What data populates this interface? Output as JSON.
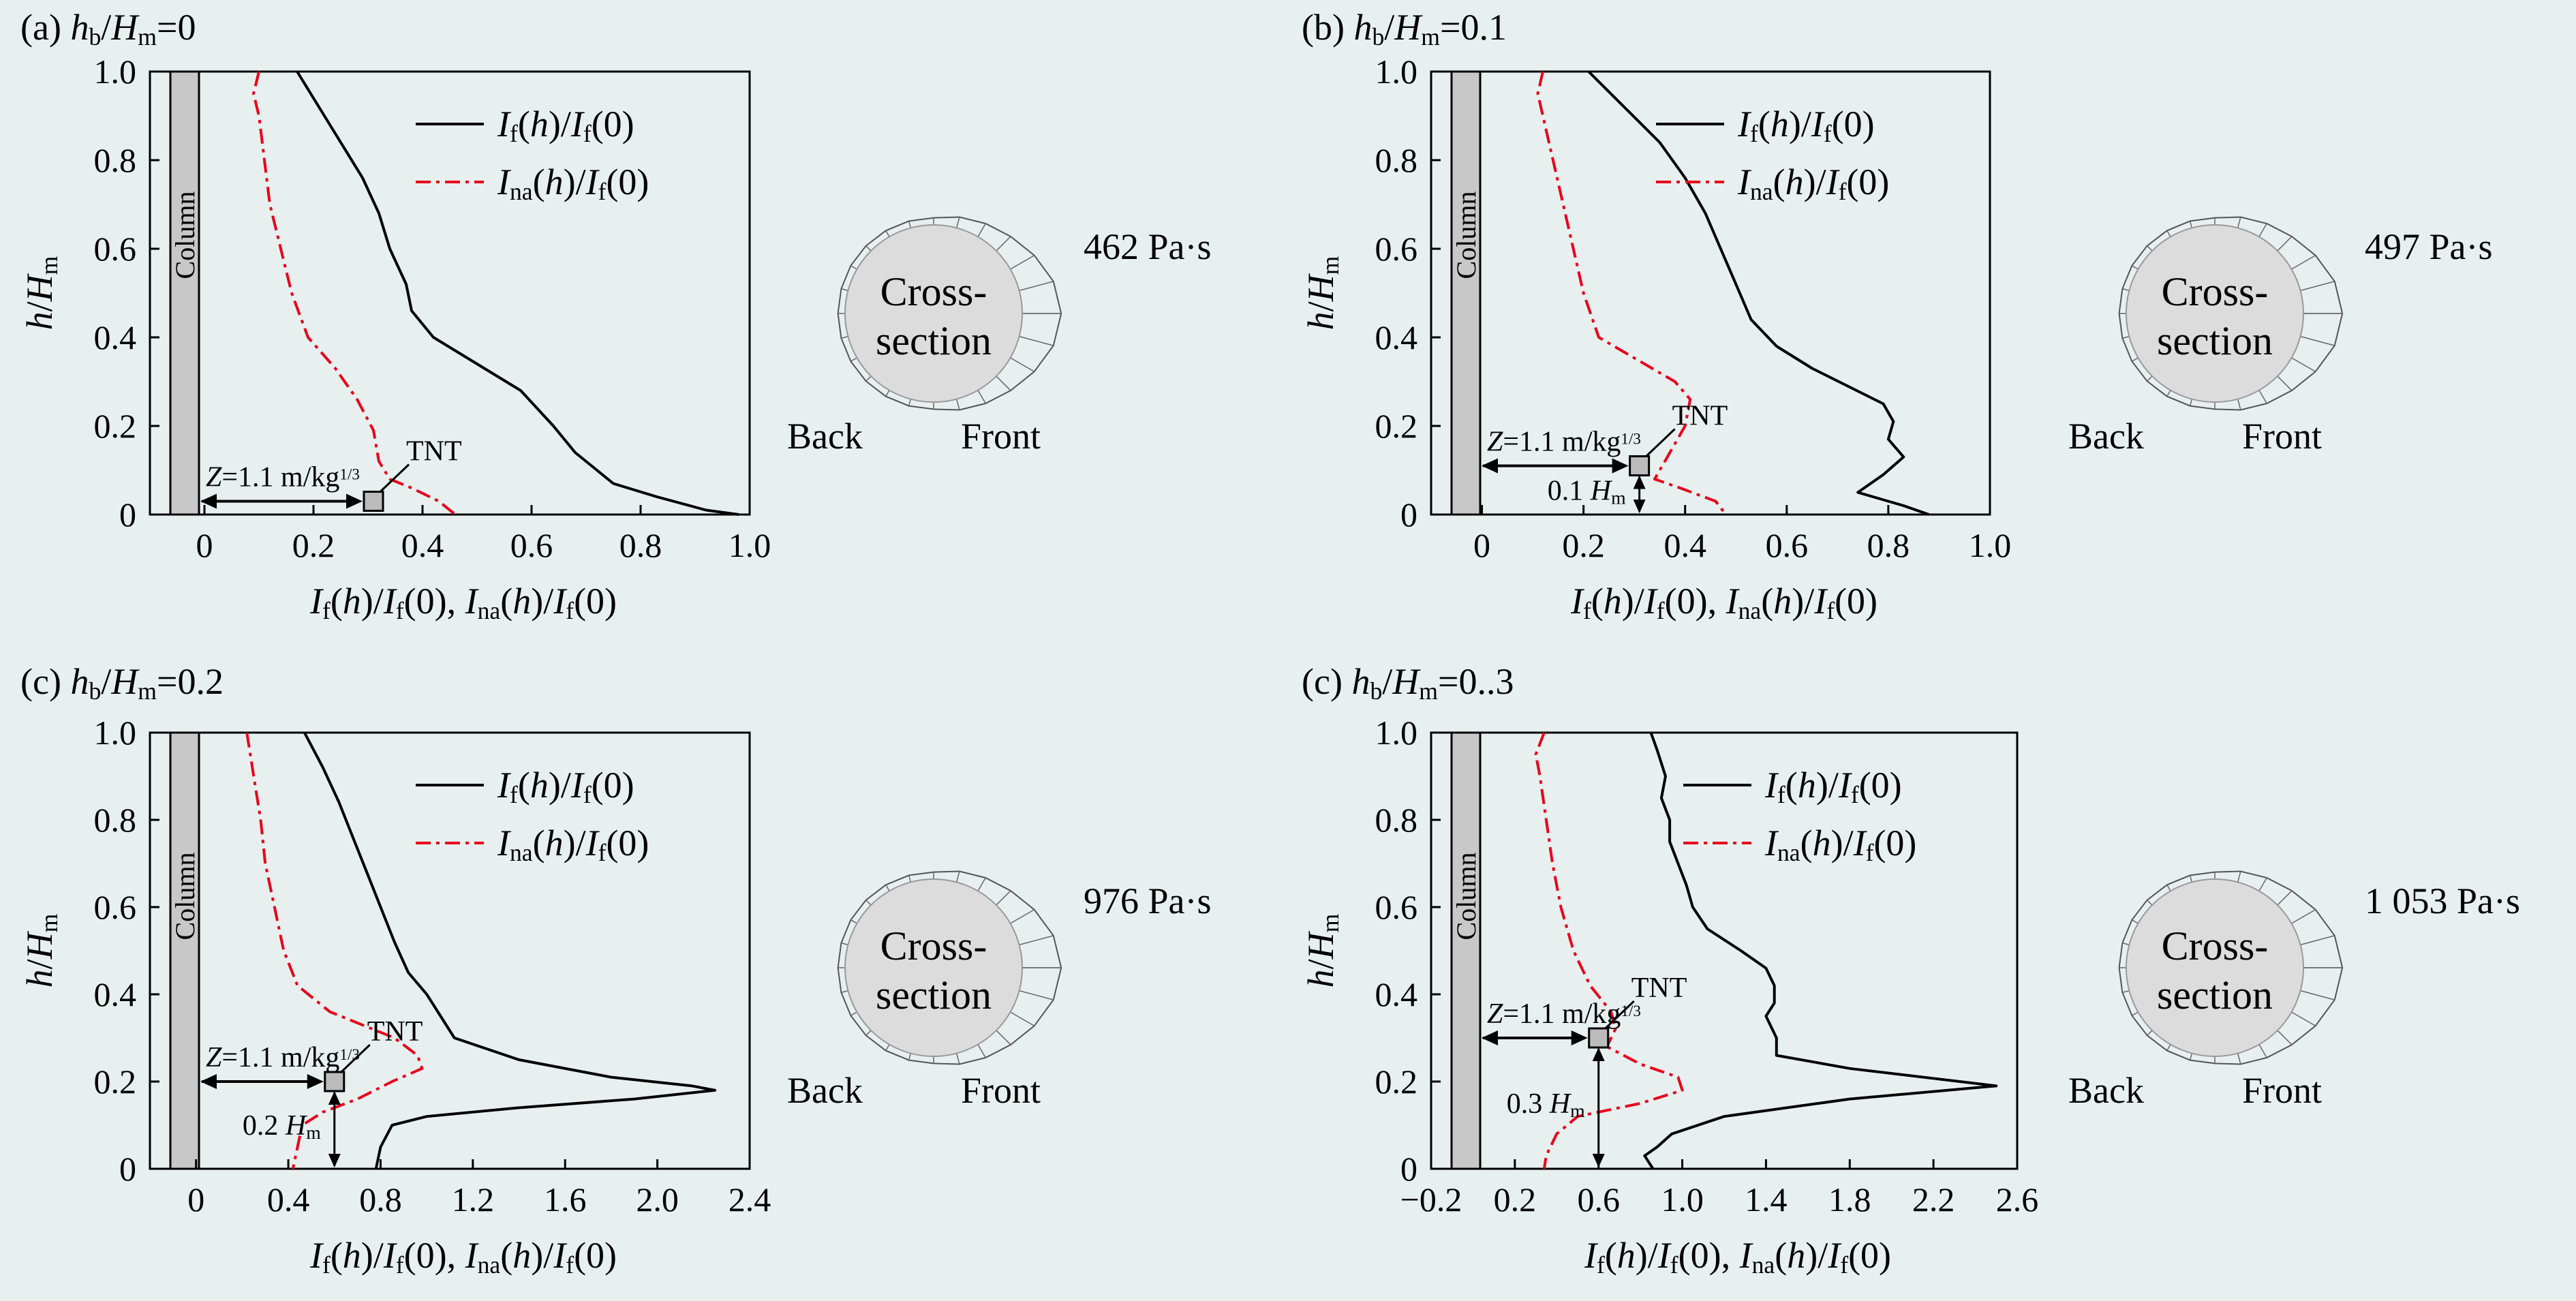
{
  "common": {
    "legend_solid": "If(h)/If(0)",
    "legend_dash": "Ina(h)/If(0)",
    "xlabel": "If(h)/If(0), Ina(h)/If(0)",
    "ylabel": "h/Hm",
    "column_label": "Column",
    "z_label": "Z=1.1 m/kg1/3",
    "tnt_label": "TNT",
    "cross_line1": "Cross-",
    "cross_line2": "section",
    "back_label": "Back",
    "front_label": "Front",
    "colors": {
      "solid": "#000000",
      "dash": "#e8001c",
      "column": "#c8c8c8",
      "cross_section": "#dcdcdc",
      "background": "#e8f0ef"
    }
  },
  "panels": [
    {
      "id": "a",
      "title_prefix": "(a) ",
      "title_value": "=0",
      "peak_label": "462 Pa·s",
      "hm_label": ""
    },
    {
      "id": "b",
      "title_prefix": "(b) ",
      "title_value": "=0.1",
      "peak_label": "497 Pa·s",
      "hm_label": "0.1 Hm"
    },
    {
      "id": "c",
      "title_prefix": "(c) ",
      "title_value": "=0.2",
      "peak_label": "976 Pa·s",
      "hm_label": "0.2 Hm"
    },
    {
      "id": "d",
      "title_prefix": "(c) ",
      "title_value": "=0..3",
      "peak_label": "1 053 Pa·s",
      "hm_label": "0.3 Hm"
    }
  ],
  "chart_data": [
    {
      "type": "line",
      "title": "(a) hb/Hm=0",
      "xlabel": "If(h)/If(0), Ina(h)/If(0)",
      "ylabel": "h/Hm",
      "xlim": [
        -0.1,
        1.0
      ],
      "ylim": [
        0,
        1.0
      ],
      "xticks": [
        "0",
        "0.2",
        "0.4",
        "0.6",
        "0.8",
        "1.0"
      ],
      "xtick_values": [
        0,
        0.2,
        0.4,
        0.6,
        0.8,
        1.0
      ],
      "yticks": [
        "0",
        "0.2",
        "0.4",
        "0.6",
        "0.8",
        "1.0"
      ],
      "legend": "top-right",
      "tnt": {
        "x": 0.31,
        "y": 0.03
      },
      "series": [
        {
          "name": "If(h)/If(0)",
          "style": "solid",
          "points": [
            [
              0.17,
              1.0
            ],
            [
              0.21,
              0.92
            ],
            [
              0.25,
              0.84
            ],
            [
              0.29,
              0.76
            ],
            [
              0.32,
              0.68
            ],
            [
              0.34,
              0.6
            ],
            [
              0.37,
              0.52
            ],
            [
              0.38,
              0.46
            ],
            [
              0.42,
              0.4
            ],
            [
              0.5,
              0.34
            ],
            [
              0.58,
              0.28
            ],
            [
              0.64,
              0.2
            ],
            [
              0.68,
              0.14
            ],
            [
              0.72,
              0.1
            ],
            [
              0.75,
              0.07
            ],
            [
              0.83,
              0.04
            ],
            [
              0.92,
              0.01
            ],
            [
              0.98,
              0.0
            ]
          ]
        },
        {
          "name": "Ina(h)/If(0)",
          "style": "dash-dot",
          "points": [
            [
              0.1,
              1.0
            ],
            [
              0.09,
              0.95
            ],
            [
              0.1,
              0.9
            ],
            [
              0.11,
              0.8
            ],
            [
              0.12,
              0.7
            ],
            [
              0.14,
              0.6
            ],
            [
              0.16,
              0.5
            ],
            [
              0.19,
              0.4
            ],
            [
              0.24,
              0.33
            ],
            [
              0.28,
              0.26
            ],
            [
              0.31,
              0.19
            ],
            [
              0.32,
              0.12
            ],
            [
              0.34,
              0.08
            ],
            [
              0.38,
              0.06
            ],
            [
              0.43,
              0.03
            ],
            [
              0.46,
              0.0
            ]
          ]
        }
      ]
    },
    {
      "type": "line",
      "title": "(b) hb/Hm=0.1",
      "xlabel": "If(h)/If(0), Ina(h)/If(0)",
      "ylabel": "h/Hm",
      "xlim": [
        -0.1,
        1.0
      ],
      "ylim": [
        0,
        1.0
      ],
      "xticks": [
        "0",
        "0.2",
        "0.4",
        "0.6",
        "0.8",
        "1.0"
      ],
      "xtick_values": [
        0,
        0.2,
        0.4,
        0.6,
        0.8,
        1.0
      ],
      "yticks": [
        "0",
        "0.2",
        "0.4",
        "0.6",
        "0.8",
        "1.0"
      ],
      "legend": "top-right",
      "tnt": {
        "x": 0.31,
        "y": 0.11
      },
      "series": [
        {
          "name": "If(h)/If(0)",
          "style": "solid",
          "points": [
            [
              0.21,
              1.0
            ],
            [
              0.28,
              0.92
            ],
            [
              0.35,
              0.84
            ],
            [
              0.4,
              0.76
            ],
            [
              0.44,
              0.68
            ],
            [
              0.47,
              0.6
            ],
            [
              0.5,
              0.52
            ],
            [
              0.53,
              0.44
            ],
            [
              0.58,
              0.38
            ],
            [
              0.65,
              0.33
            ],
            [
              0.72,
              0.29
            ],
            [
              0.79,
              0.25
            ],
            [
              0.81,
              0.21
            ],
            [
              0.8,
              0.17
            ],
            [
              0.83,
              0.13
            ],
            [
              0.79,
              0.09
            ],
            [
              0.74,
              0.05
            ],
            [
              0.83,
              0.02
            ],
            [
              0.88,
              0.0
            ]
          ]
        },
        {
          "name": "Ina(h)/If(0)",
          "style": "dash-dot",
          "points": [
            [
              0.12,
              1.0
            ],
            [
              0.11,
              0.95
            ],
            [
              0.12,
              0.9
            ],
            [
              0.14,
              0.8
            ],
            [
              0.16,
              0.7
            ],
            [
              0.18,
              0.6
            ],
            [
              0.2,
              0.5
            ],
            [
              0.23,
              0.4
            ],
            [
              0.32,
              0.34
            ],
            [
              0.38,
              0.3
            ],
            [
              0.41,
              0.26
            ],
            [
              0.4,
              0.2
            ],
            [
              0.37,
              0.14
            ],
            [
              0.34,
              0.08
            ],
            [
              0.39,
              0.06
            ],
            [
              0.46,
              0.03
            ],
            [
              0.48,
              0.0
            ]
          ]
        }
      ]
    },
    {
      "type": "line",
      "title": "(c) hb/Hm=0.2",
      "xlabel": "If(h)/If(0), Ina(h)/If(0)",
      "ylabel": "h/Hm",
      "xlim": [
        -0.2,
        2.4
      ],
      "ylim": [
        0,
        1.0
      ],
      "xticks": [
        "0",
        "0.4",
        "0.8",
        "1.2",
        "1.6",
        "2.0",
        "2.4"
      ],
      "xtick_values": [
        0,
        0.4,
        0.8,
        1.2,
        1.6,
        2.0,
        2.4
      ],
      "yticks": [
        "0",
        "0.2",
        "0.4",
        "0.6",
        "0.8",
        "1.0"
      ],
      "legend": "top-right",
      "tnt": {
        "x": 0.6,
        "y": 0.2
      },
      "series": [
        {
          "name": "If(h)/If(0)",
          "style": "solid",
          "points": [
            [
              0.47,
              1.0
            ],
            [
              0.55,
              0.92
            ],
            [
              0.62,
              0.84
            ],
            [
              0.68,
              0.76
            ],
            [
              0.74,
              0.68
            ],
            [
              0.8,
              0.6
            ],
            [
              0.86,
              0.52
            ],
            [
              0.92,
              0.45
            ],
            [
              1.0,
              0.4
            ],
            [
              1.06,
              0.35
            ],
            [
              1.12,
              0.3
            ],
            [
              1.4,
              0.25
            ],
            [
              1.8,
              0.21
            ],
            [
              2.15,
              0.19
            ],
            [
              2.25,
              0.18
            ],
            [
              1.9,
              0.16
            ],
            [
              1.4,
              0.14
            ],
            [
              1.0,
              0.12
            ],
            [
              0.85,
              0.1
            ],
            [
              0.8,
              0.05
            ],
            [
              0.78,
              0.0
            ]
          ]
        },
        {
          "name": "Ina(h)/If(0)",
          "style": "dash-dot",
          "points": [
            [
              0.22,
              1.0
            ],
            [
              0.25,
              0.9
            ],
            [
              0.28,
              0.8
            ],
            [
              0.3,
              0.7
            ],
            [
              0.34,
              0.6
            ],
            [
              0.38,
              0.5
            ],
            [
              0.44,
              0.42
            ],
            [
              0.58,
              0.36
            ],
            [
              0.72,
              0.33
            ],
            [
              0.86,
              0.3
            ],
            [
              0.96,
              0.26
            ],
            [
              0.98,
              0.23
            ],
            [
              0.85,
              0.2
            ],
            [
              0.7,
              0.16
            ],
            [
              0.55,
              0.13
            ],
            [
              0.46,
              0.1
            ],
            [
              0.44,
              0.05
            ],
            [
              0.42,
              0.0
            ]
          ]
        }
      ]
    },
    {
      "type": "line",
      "title": "(c) hb/Hm=0..3",
      "xlabel": "If(h)/If(0), Ina(h)/If(0)",
      "ylabel": "h/Hm",
      "xlim": [
        -0.2,
        2.6
      ],
      "ylim": [
        0,
        1.0
      ],
      "xticks": [
        "−0.2",
        "0.2",
        "0.6",
        "1.0",
        "1.4",
        "1.8",
        "2.2",
        "2.6"
      ],
      "xtick_values": [
        -0.2,
        0.2,
        0.6,
        1.0,
        1.4,
        1.8,
        2.2,
        2.6
      ],
      "yticks": [
        "0",
        "0.2",
        "0.4",
        "0.6",
        "0.8",
        "1.0"
      ],
      "legend": "top-right",
      "tnt": {
        "x": 0.6,
        "y": 0.3
      },
      "series": [
        {
          "name": "If(h)/If(0)",
          "style": "solid",
          "points": [
            [
              0.85,
              1.0
            ],
            [
              0.88,
              0.96
            ],
            [
              0.92,
              0.9
            ],
            [
              0.9,
              0.85
            ],
            [
              0.94,
              0.8
            ],
            [
              0.94,
              0.75
            ],
            [
              0.98,
              0.7
            ],
            [
              1.02,
              0.65
            ],
            [
              1.05,
              0.6
            ],
            [
              1.12,
              0.55
            ],
            [
              1.28,
              0.5
            ],
            [
              1.4,
              0.46
            ],
            [
              1.44,
              0.42
            ],
            [
              1.44,
              0.38
            ],
            [
              1.4,
              0.35
            ],
            [
              1.45,
              0.3
            ],
            [
              1.45,
              0.26
            ],
            [
              1.8,
              0.23
            ],
            [
              2.5,
              0.19
            ],
            [
              1.8,
              0.16
            ],
            [
              1.2,
              0.12
            ],
            [
              0.95,
              0.08
            ],
            [
              0.88,
              0.05
            ],
            [
              0.82,
              0.03
            ],
            [
              0.86,
              0.0
            ]
          ]
        },
        {
          "name": "Ina(h)/If(0)",
          "style": "dash-dot",
          "points": [
            [
              0.34,
              1.0
            ],
            [
              0.3,
              0.95
            ],
            [
              0.32,
              0.9
            ],
            [
              0.35,
              0.8
            ],
            [
              0.38,
              0.7
            ],
            [
              0.42,
              0.6
            ],
            [
              0.48,
              0.5
            ],
            [
              0.56,
              0.42
            ],
            [
              0.66,
              0.36
            ],
            [
              0.68,
              0.32
            ],
            [
              0.64,
              0.28
            ],
            [
              0.8,
              0.24
            ],
            [
              0.98,
              0.21
            ],
            [
              1.0,
              0.18
            ],
            [
              0.8,
              0.15
            ],
            [
              0.5,
              0.12
            ],
            [
              0.4,
              0.08
            ],
            [
              0.35,
              0.03
            ],
            [
              0.34,
              0.0
            ]
          ]
        }
      ]
    }
  ]
}
